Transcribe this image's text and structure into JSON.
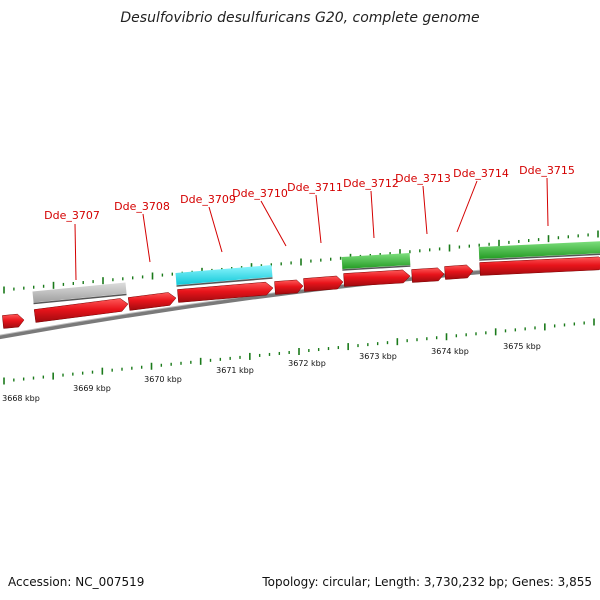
{
  "title": "Desulfovibrio desulfuricans G20, complete genome",
  "footer": {
    "accession": "Accession: NC_007519",
    "summary": "Topology: circular; Length: 3,730,232 bp; Genes: 3,855"
  },
  "scale": {
    "unit": "kbp",
    "labels": [
      "3668 kbp",
      "3669 kbp",
      "3670 kbp",
      "3671 kbp",
      "3672 kbp",
      "3673 kbp",
      "3674 kbp",
      "3675 kbp"
    ]
  },
  "colors": {
    "gene_label": "#d40000",
    "cds": "#e8141b",
    "rna_gray": "#b8b8b8",
    "rna_cyan": "#22e0f0",
    "rna_green": "#3cc43c",
    "backbone": "#7a7a7a",
    "tick": "#1a7a1a"
  },
  "genes": [
    {
      "name": "Dde_3707",
      "color": "gray"
    },
    {
      "name": "Dde_3708",
      "color": "red"
    },
    {
      "name": "Dde_3709",
      "color": "cyan"
    },
    {
      "name": "Dde_3710",
      "color": "red"
    },
    {
      "name": "Dde_3711",
      "color": "red"
    },
    {
      "name": "Dde_3712",
      "color": "green"
    },
    {
      "name": "Dde_3713",
      "color": "red"
    },
    {
      "name": "Dde_3714",
      "color": "red"
    },
    {
      "name": "Dde_3715",
      "color": "green"
    }
  ]
}
